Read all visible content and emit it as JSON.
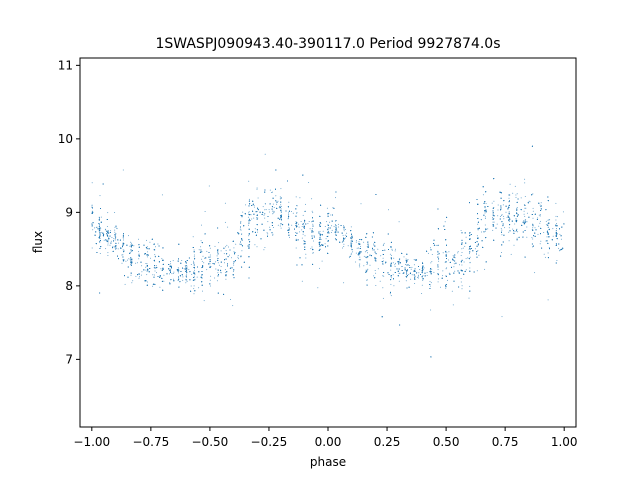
{
  "chart_data": {
    "type": "scatter",
    "title": "1SWASPJ090943.40-390117.0 Period 9927874.0s",
    "xlabel": "phase",
    "ylabel": "flux",
    "xlim": [
      -1.05,
      1.05
    ],
    "ylim": [
      6.08,
      11.1
    ],
    "x_ticks": [
      -1.0,
      -0.75,
      -0.5,
      -0.25,
      0.0,
      0.25,
      0.5,
      0.75,
      1.0
    ],
    "x_tick_labels": [
      "−1.00",
      "−0.75",
      "−0.50",
      "−0.25",
      "0.00",
      "0.25",
      "0.50",
      "0.75",
      "1.00"
    ],
    "y_ticks": [
      7,
      8,
      9,
      10,
      11
    ],
    "y_tick_labels": [
      "7",
      "8",
      "9",
      "10",
      "11"
    ],
    "grid": false,
    "legend": "none",
    "marker_color": "#1f77b4",
    "series": [
      {
        "profile_x": [
          0.0,
          0.05,
          0.1,
          0.15,
          0.2,
          0.25,
          0.3,
          0.35,
          0.4,
          0.45,
          0.5,
          0.55,
          0.6,
          0.65,
          0.7,
          0.75,
          0.8,
          0.85,
          0.9,
          0.95,
          1.0
        ],
        "profile_median_flux": [
          8.9,
          8.7,
          8.6,
          8.4,
          8.35,
          8.3,
          8.25,
          8.2,
          8.2,
          8.3,
          8.35,
          8.3,
          8.4,
          8.8,
          8.95,
          9.0,
          8.95,
          8.9,
          8.8,
          8.7,
          8.7
        ],
        "profile_spread": [
          0.3,
          0.25,
          0.2,
          0.35,
          0.3,
          0.35,
          0.3,
          0.15,
          0.15,
          0.45,
          0.35,
          0.35,
          0.35,
          0.45,
          0.4,
          0.45,
          0.4,
          0.4,
          0.4,
          0.35,
          0.3
        ]
      }
    ]
  }
}
